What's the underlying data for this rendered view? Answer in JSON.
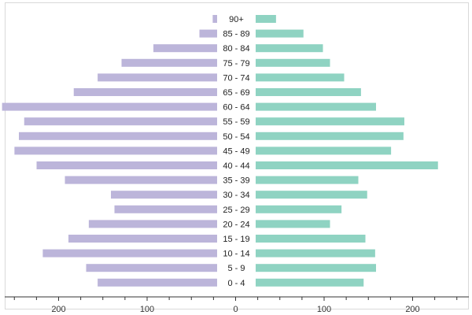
{
  "chart_data": {
    "type": "bar",
    "orientation": "horizontal",
    "categories": [
      "90+",
      "85 - 89",
      "80 - 84",
      "75 - 79",
      "70 - 74",
      "65 - 69",
      "60 - 64",
      "55 - 59",
      "50 - 54",
      "45 - 49",
      "40 - 44",
      "35 - 39",
      "30 - 34",
      "25 - 29",
      "20 - 24",
      "15 - 19",
      "10 - 14",
      "5 - 9",
      "0 - 4"
    ],
    "series": [
      {
        "color": "#bcb5da",
        "side": "left",
        "values": [
          5,
          20,
          72,
          108,
          135,
          162,
          243,
          218,
          224,
          229,
          204,
          172,
          120,
          116,
          145,
          168,
          197,
          148,
          135
        ]
      },
      {
        "color": "#8fd3c2",
        "side": "right",
        "values": [
          23,
          54,
          76,
          84,
          100,
          119,
          136,
          168,
          167,
          153,
          206,
          116,
          126,
          97,
          84,
          124,
          135,
          136,
          122
        ]
      }
    ],
    "xticks": [
      "200",
      "100",
      "0",
      "100",
      "200"
    ],
    "xlim": [
      -260,
      260
    ],
    "title": "",
    "xlabel": "",
    "ylabel": "",
    "grid": false,
    "legend": "none"
  }
}
